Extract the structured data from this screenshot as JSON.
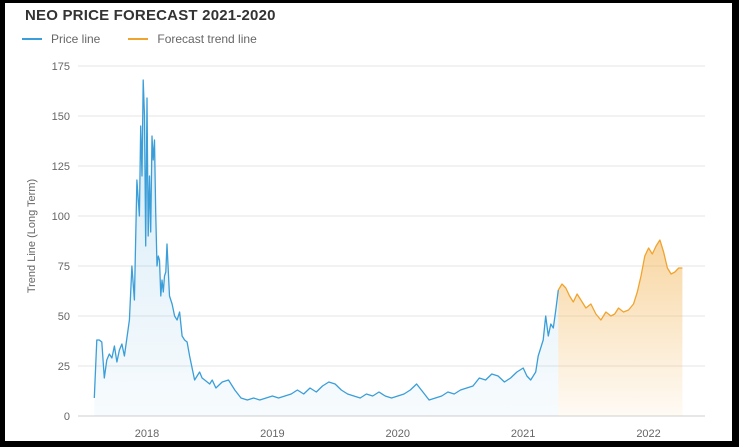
{
  "chart_data": {
    "type": "line",
    "title": "NEO PRICE FORECAST 2021-2020",
    "ylabel": "Trend Line (Long Term)",
    "xlabel": "",
    "ylim": [
      0,
      175
    ],
    "yticks": [
      0,
      25,
      50,
      75,
      100,
      125,
      150,
      175
    ],
    "xticks": [
      2018,
      2019,
      2020,
      2021,
      2022
    ],
    "grid": true,
    "legend_position": "top-left",
    "series": [
      {
        "name": "Price line",
        "color": "#3b9ed8",
        "x": [
          2017.58,
          2017.6,
          2017.62,
          2017.64,
          2017.66,
          2017.68,
          2017.7,
          2017.72,
          2017.74,
          2017.76,
          2017.78,
          2017.8,
          2017.82,
          2017.84,
          2017.86,
          2017.88,
          2017.9,
          2017.92,
          2017.94,
          2017.95,
          2017.96,
          2017.97,
          2017.98,
          2017.99,
          2018.0,
          2018.01,
          2018.02,
          2018.03,
          2018.04,
          2018.05,
          2018.06,
          2018.07,
          2018.08,
          2018.09,
          2018.1,
          2018.11,
          2018.12,
          2018.13,
          2018.14,
          2018.15,
          2018.16,
          2018.18,
          2018.2,
          2018.22,
          2018.24,
          2018.26,
          2018.28,
          2018.3,
          2018.32,
          2018.34,
          2018.36,
          2018.38,
          2018.4,
          2018.42,
          2018.44,
          2018.46,
          2018.48,
          2018.5,
          2018.52,
          2018.55,
          2018.6,
          2018.65,
          2018.7,
          2018.75,
          2018.8,
          2018.85,
          2018.9,
          2018.95,
          2019.0,
          2019.05,
          2019.1,
          2019.15,
          2019.2,
          2019.25,
          2019.3,
          2019.35,
          2019.4,
          2019.45,
          2019.5,
          2019.55,
          2019.6,
          2019.65,
          2019.7,
          2019.75,
          2019.8,
          2019.85,
          2019.9,
          2019.95,
          2020.0,
          2020.05,
          2020.1,
          2020.15,
          2020.2,
          2020.25,
          2020.3,
          2020.35,
          2020.4,
          2020.45,
          2020.5,
          2020.55,
          2020.6,
          2020.65,
          2020.7,
          2020.75,
          2020.8,
          2020.85,
          2020.9,
          2020.95,
          2021.0,
          2021.03,
          2021.06,
          2021.08,
          2021.1,
          2021.12,
          2021.14,
          2021.16,
          2021.18,
          2021.2,
          2021.22,
          2021.24,
          2021.26,
          2021.28
        ],
        "values": [
          9,
          38,
          38,
          37,
          19,
          28,
          31,
          29,
          35,
          27,
          33,
          36,
          30,
          39,
          48,
          75,
          58,
          118,
          100,
          145,
          120,
          168,
          150,
          85,
          159,
          90,
          120,
          92,
          140,
          128,
          138,
          102,
          75,
          80,
          78,
          60,
          68,
          62,
          70,
          72,
          86,
          60,
          56,
          50,
          48,
          52,
          40,
          38,
          37,
          30,
          24,
          18,
          20,
          22,
          19,
          18,
          17,
          16,
          18,
          14,
          17,
          18,
          13,
          9,
          8,
          9,
          8,
          9,
          10,
          9,
          10,
          11,
          13,
          11,
          14,
          12,
          15,
          17,
          16,
          13,
          11,
          10,
          9,
          11,
          10,
          12,
          10,
          9,
          10,
          11,
          13,
          16,
          12,
          8,
          9,
          10,
          12,
          11,
          13,
          14,
          15,
          19,
          18,
          21,
          20,
          17,
          19,
          22,
          24,
          20,
          18,
          20,
          22,
          30,
          34,
          38,
          50,
          40,
          46,
          44,
          53,
          63
        ]
      },
      {
        "name": "Forecast trend line",
        "color": "#f0a430",
        "x": [
          2021.28,
          2021.31,
          2021.34,
          2021.37,
          2021.4,
          2021.43,
          2021.46,
          2021.5,
          2021.54,
          2021.58,
          2021.62,
          2021.66,
          2021.7,
          2021.73,
          2021.76,
          2021.8,
          2021.84,
          2021.88,
          2021.91,
          2021.94,
          2021.97,
          2022.0,
          2022.03,
          2022.06,
          2022.09,
          2022.12,
          2022.15,
          2022.18,
          2022.21,
          2022.24,
          2022.27
        ],
        "values": [
          63,
          66,
          64,
          60,
          57,
          61,
          58,
          54,
          56,
          51,
          48,
          52,
          50,
          51,
          54,
          52,
          53,
          56,
          62,
          70,
          80,
          84,
          81,
          85,
          88,
          82,
          74,
          71,
          72,
          74,
          74
        ]
      }
    ]
  }
}
